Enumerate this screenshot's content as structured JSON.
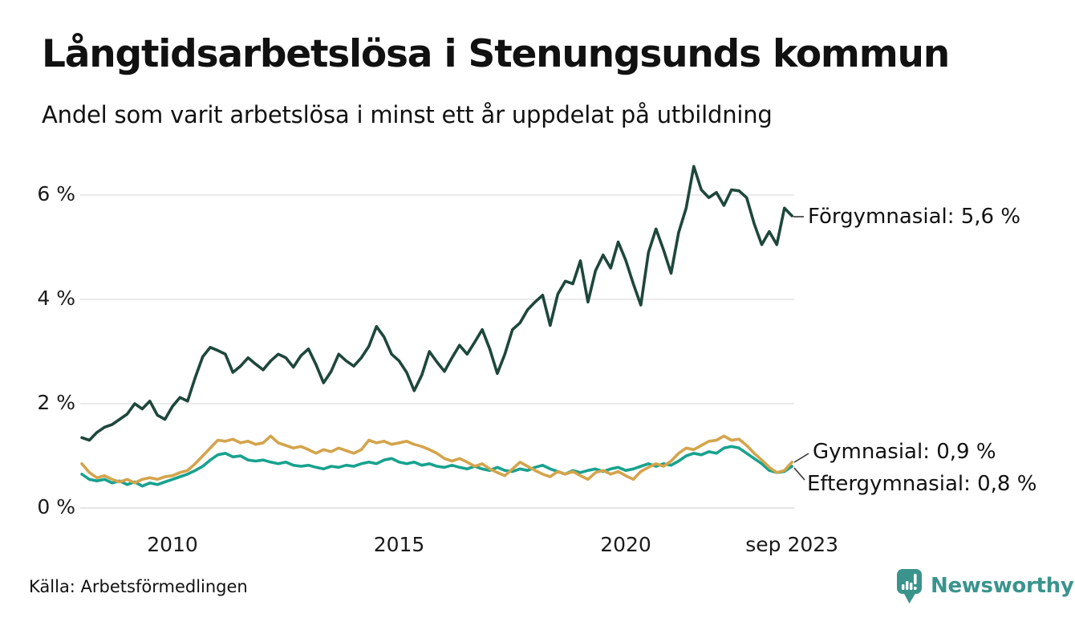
{
  "header": {
    "title": "Långtidsarbetslösa i Stenungsunds kommun",
    "subtitle": "Andel som varit arbetslösa i minst ett år uppdelat på utbildning"
  },
  "footer": {
    "source": "Källa: Arbetsförmedlingen",
    "brand": "Newsworthy",
    "brand_icon": "bar-chart-speech-bubble-icon",
    "brand_color": "#3A948C"
  },
  "chart_data": {
    "type": "line",
    "title": "Långtidsarbetslösa i Stenungsunds kommun",
    "subtitle": "Andel som varit arbetslösa i minst ett år uppdelat på utbildning",
    "x_unit": "decimal_year_monthly_share_unemployed_over_1yr",
    "grid": "horizontal",
    "legend": "end-labels",
    "ylim": [
      0,
      6.9
    ],
    "y_ticks": [
      "0 %",
      "2 %",
      "4 %",
      "6 %"
    ],
    "y_tick_values": [
      0,
      2,
      4,
      6
    ],
    "x_tick_labels": [
      "2010",
      "2015",
      "2020",
      "sep 2023"
    ],
    "x_tick_values": [
      2010,
      2015,
      2020,
      2023.667
    ],
    "grid_color": "#e4e4e4",
    "leader_color": "#333333",
    "x": [
      2008.0,
      2008.167,
      2008.333,
      2008.5,
      2008.667,
      2008.833,
      2009.0,
      2009.167,
      2009.333,
      2009.5,
      2009.667,
      2009.833,
      2010.0,
      2010.167,
      2010.333,
      2010.5,
      2010.667,
      2010.833,
      2011.0,
      2011.167,
      2011.333,
      2011.5,
      2011.667,
      2011.833,
      2012.0,
      2012.167,
      2012.333,
      2012.5,
      2012.667,
      2012.833,
      2013.0,
      2013.167,
      2013.333,
      2013.5,
      2013.667,
      2013.833,
      2014.0,
      2014.167,
      2014.333,
      2014.5,
      2014.667,
      2014.833,
      2015.0,
      2015.167,
      2015.333,
      2015.5,
      2015.667,
      2015.833,
      2016.0,
      2016.167,
      2016.333,
      2016.5,
      2016.667,
      2016.833,
      2017.0,
      2017.167,
      2017.333,
      2017.5,
      2017.667,
      2017.833,
      2018.0,
      2018.167,
      2018.333,
      2018.5,
      2018.667,
      2018.833,
      2019.0,
      2019.167,
      2019.333,
      2019.5,
      2019.667,
      2019.833,
      2020.0,
      2020.167,
      2020.333,
      2020.5,
      2020.667,
      2020.833,
      2021.0,
      2021.167,
      2021.333,
      2021.5,
      2021.667,
      2021.833,
      2022.0,
      2022.167,
      2022.333,
      2022.5,
      2022.667,
      2022.833,
      2023.0,
      2023.167,
      2023.333,
      2023.5,
      2023.667
    ],
    "series": [
      {
        "name": "Förgymnasial",
        "end_label": "Förgymnasial: 5,6 %",
        "end_value": 5.6,
        "color": "#1E473C",
        "values": [
          1.35,
          1.3,
          1.45,
          1.55,
          1.6,
          1.7,
          1.8,
          2.0,
          1.9,
          2.05,
          1.78,
          1.7,
          1.95,
          2.12,
          2.05,
          2.5,
          2.9,
          3.08,
          3.02,
          2.95,
          2.6,
          2.72,
          2.88,
          2.76,
          2.65,
          2.82,
          2.95,
          2.88,
          2.7,
          2.92,
          3.05,
          2.75,
          2.4,
          2.62,
          2.95,
          2.82,
          2.72,
          2.88,
          3.1,
          3.48,
          3.28,
          2.95,
          2.82,
          2.6,
          2.25,
          2.55,
          3.0,
          2.8,
          2.62,
          2.88,
          3.12,
          2.95,
          3.18,
          3.42,
          3.05,
          2.58,
          2.95,
          3.42,
          3.55,
          3.8,
          3.95,
          4.08,
          3.5,
          4.1,
          4.35,
          4.3,
          4.74,
          3.95,
          4.55,
          4.85,
          4.6,
          5.1,
          4.75,
          4.3,
          3.89,
          4.9,
          5.35,
          4.95,
          4.5,
          5.28,
          5.75,
          6.55,
          6.1,
          5.95,
          6.05,
          5.8,
          6.1,
          6.08,
          5.95,
          5.45,
          5.05,
          5.3,
          5.05,
          5.75,
          5.6
        ]
      },
      {
        "name": "Gymnasial",
        "end_label": "Gymnasial: 0,9 %",
        "end_value": 0.9,
        "color": "#D4A44C",
        "values": [
          0.85,
          0.68,
          0.58,
          0.62,
          0.55,
          0.5,
          0.55,
          0.48,
          0.55,
          0.58,
          0.55,
          0.6,
          0.62,
          0.68,
          0.72,
          0.85,
          1.0,
          1.15,
          1.3,
          1.28,
          1.32,
          1.25,
          1.28,
          1.22,
          1.25,
          1.38,
          1.25,
          1.2,
          1.15,
          1.18,
          1.12,
          1.05,
          1.12,
          1.08,
          1.15,
          1.1,
          1.05,
          1.12,
          1.3,
          1.25,
          1.28,
          1.22,
          1.25,
          1.28,
          1.22,
          1.18,
          1.12,
          1.05,
          0.95,
          0.9,
          0.95,
          0.88,
          0.8,
          0.85,
          0.75,
          0.68,
          0.62,
          0.75,
          0.88,
          0.8,
          0.72,
          0.65,
          0.6,
          0.7,
          0.65,
          0.7,
          0.62,
          0.55,
          0.68,
          0.72,
          0.65,
          0.7,
          0.62,
          0.55,
          0.7,
          0.78,
          0.85,
          0.8,
          0.9,
          1.05,
          1.15,
          1.12,
          1.2,
          1.28,
          1.3,
          1.38,
          1.3,
          1.32,
          1.2,
          1.05,
          0.92,
          0.78,
          0.68,
          0.72,
          0.88
        ]
      },
      {
        "name": "Eftergymnasial",
        "end_label": "Eftergymnasial: 0,8 %",
        "end_value": 0.8,
        "color": "#18A28E",
        "values": [
          0.65,
          0.55,
          0.52,
          0.55,
          0.48,
          0.52,
          0.45,
          0.5,
          0.42,
          0.48,
          0.45,
          0.5,
          0.55,
          0.6,
          0.65,
          0.72,
          0.8,
          0.92,
          1.02,
          1.05,
          0.98,
          1.0,
          0.92,
          0.9,
          0.92,
          0.88,
          0.85,
          0.88,
          0.82,
          0.8,
          0.82,
          0.78,
          0.75,
          0.8,
          0.78,
          0.82,
          0.8,
          0.85,
          0.88,
          0.85,
          0.92,
          0.95,
          0.88,
          0.85,
          0.88,
          0.82,
          0.85,
          0.8,
          0.78,
          0.82,
          0.78,
          0.75,
          0.8,
          0.75,
          0.72,
          0.78,
          0.72,
          0.7,
          0.75,
          0.72,
          0.78,
          0.82,
          0.75,
          0.7,
          0.65,
          0.72,
          0.68,
          0.72,
          0.75,
          0.7,
          0.75,
          0.78,
          0.72,
          0.75,
          0.8,
          0.85,
          0.8,
          0.85,
          0.82,
          0.9,
          1.0,
          1.05,
          1.02,
          1.08,
          1.05,
          1.15,
          1.18,
          1.15,
          1.05,
          0.95,
          0.85,
          0.72,
          0.68,
          0.7,
          0.8
        ]
      }
    ]
  }
}
